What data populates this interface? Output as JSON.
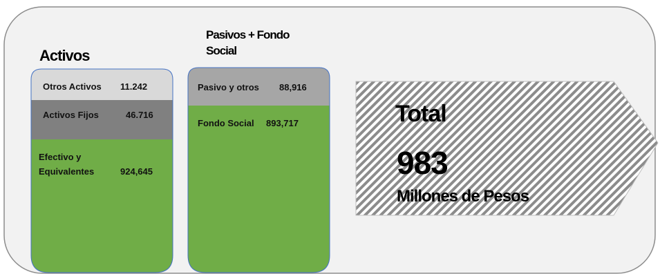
{
  "assets": {
    "title": "Activos",
    "blocks": [
      {
        "label": "Otros Activos",
        "value": "11.242"
      },
      {
        "label": "Activos Fijos",
        "value": "46.716"
      },
      {
        "label_lines": [
          "Efectivo y",
          "Equivalentes"
        ],
        "value": "924,645"
      }
    ]
  },
  "liabilities": {
    "title_lines": [
      "Pasivos + Fondo",
      "Social"
    ],
    "blocks": [
      {
        "label": "Pasivo y otros",
        "value": "88,916"
      },
      {
        "label": "Fondo Social",
        "value": "893,717"
      }
    ]
  },
  "total": {
    "title": "Total",
    "value": "983",
    "unit": "Millones  de Pesos"
  }
}
